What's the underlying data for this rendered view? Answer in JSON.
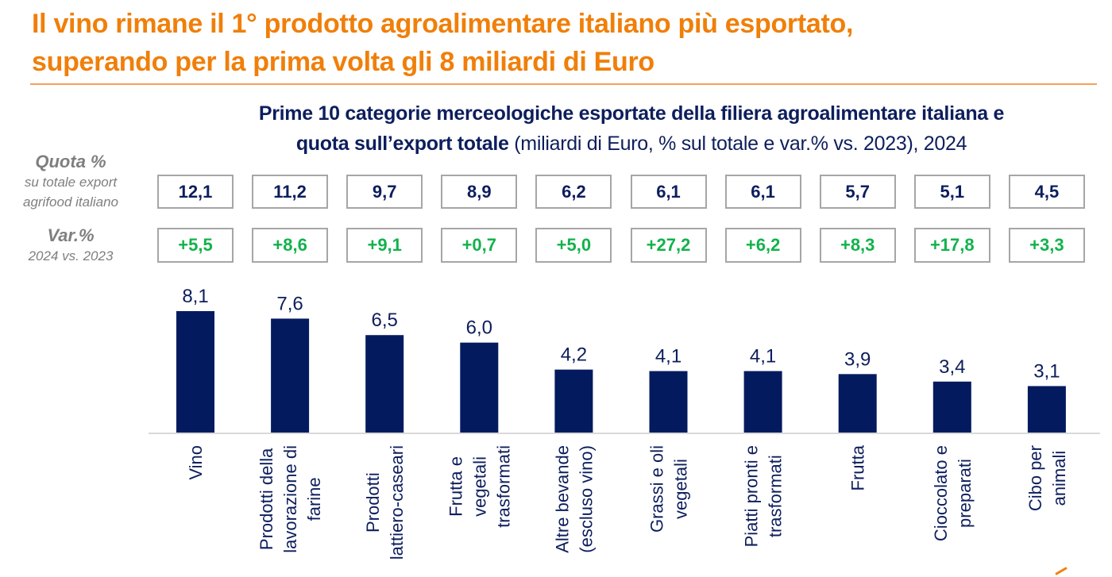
{
  "header": {
    "title_line1": "Il vino rimane il 1° prodotto agroalimentare italiano più esportato,",
    "title_line2": "superando per la prima volta gli 8 miliardi di Euro"
  },
  "subtitle": {
    "bold_line1": "Prime 10 categorie merceologiche esportate della filiera agroalimentare italiana e",
    "bold_line2": "quota sull’export totale",
    "normal_line2": " (miliardi di Euro, % sul totale e var.% vs. 2023), 2024"
  },
  "side_labels": {
    "share_heading": "Quota %",
    "share_sub1": "su totale export",
    "share_sub2": "agrifood italiano",
    "var_heading": "Var.%",
    "var_sub": "2024 vs. 2023"
  },
  "colors": {
    "title": "#F07F09",
    "navy": "#0D1E5C",
    "bar": "#031B5E",
    "green": "#12B24B",
    "box_border": "#A6A6A6",
    "axis": "#D9D9D9"
  },
  "chart_data": {
    "type": "bar",
    "title": "Prime 10 categorie merceologiche esportate della filiera agroalimentare italiana e quota sull’export totale (miliardi di Euro, % sul totale e var.% vs. 2023), 2024",
    "xlabel": "",
    "ylabel": "miliardi di Euro",
    "ylim": [
      0,
      8.1
    ],
    "grid": false,
    "categories": [
      [
        "Vino"
      ],
      [
        "Prodotti della",
        "lavorazione di",
        "farine"
      ],
      [
        "Prodotti",
        "lattiero-caseari"
      ],
      [
        "Frutta e",
        "vegetali",
        "trasformati"
      ],
      [
        "Altre bevande",
        "(escluso vino)"
      ],
      [
        "Grassi e oli",
        "vegetali"
      ],
      [
        "Piatti pronti e",
        "trasformati"
      ],
      [
        "Frutta"
      ],
      [
        "Cioccolato e",
        "preparati"
      ],
      [
        "Cibo per",
        "animali"
      ]
    ],
    "values": [
      8.1,
      7.6,
      6.5,
      6.0,
      4.2,
      4.1,
      4.1,
      3.9,
      3.4,
      3.1
    ],
    "value_labels": [
      "8,1",
      "7,6",
      "6,5",
      "6,0",
      "4,2",
      "4,1",
      "4,1",
      "3,9",
      "3,4",
      "3,1"
    ],
    "share_pct_labels": [
      "12,1",
      "11,2",
      "9,7",
      "8,9",
      "6,2",
      "6,1",
      "6,1",
      "5,7",
      "5,1",
      "4,5"
    ],
    "share_pct": [
      12.1,
      11.2,
      9.7,
      8.9,
      6.2,
      6.1,
      6.1,
      5.7,
      5.1,
      4.5
    ],
    "var_pct_labels": [
      "+5,5",
      "+8,6",
      "+9,1",
      "+0,7",
      "+5,0",
      "+27,2",
      "+6,2",
      "+8,3",
      "+17,8",
      "+3,3"
    ],
    "var_pct": [
      5.5,
      8.6,
      9.1,
      0.7,
      5.0,
      27.2,
      6.2,
      8.3,
      17.8,
      3.3
    ]
  }
}
